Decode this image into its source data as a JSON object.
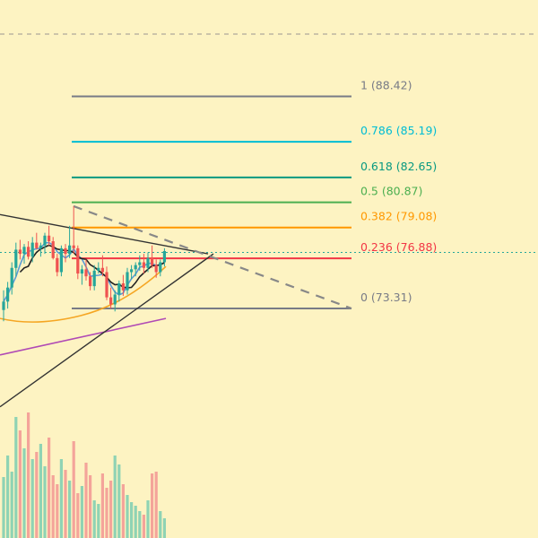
{
  "chart_data": {
    "type": "candlestick",
    "title": "",
    "xlabel": "",
    "ylabel": "",
    "ylim": [
      62.0,
      92.6
    ],
    "colors": {
      "background": "#fdf3c2",
      "up": "#26a69a",
      "down": "#ef5350",
      "volume_up": "#8fd3b4",
      "volume_down": "#f4a49a",
      "ma_fast": "#5b9bd5",
      "ma_mid": "#222222",
      "ma_slow": "#f5a623",
      "ma_long": "#b04ab5",
      "trendline": "#333333",
      "projection": "#888888",
      "current_price_line": "#26a69a"
    },
    "fibonacci": {
      "levels": [
        {
          "ratio": "1",
          "price": 88.42,
          "label": "1 (88.42)",
          "color": "#787b86"
        },
        {
          "ratio": "0.786",
          "price": 85.19,
          "label": "0.786 (85.19)",
          "color": "#00bcd4"
        },
        {
          "ratio": "0.618",
          "price": 82.65,
          "label": "0.618 (82.65)",
          "color": "#089981"
        },
        {
          "ratio": "0.5",
          "price": 80.87,
          "label": "0.5 (80.87)",
          "color": "#4caf50"
        },
        {
          "ratio": "0.382",
          "price": 79.08,
          "label": "0.382 (79.08)",
          "color": "#ff9800"
        },
        {
          "ratio": "0.236",
          "price": 76.88,
          "label": "0.236 (76.88)",
          "color": "#f23645"
        },
        {
          "ratio": "0",
          "price": 73.31,
          "label": "0 (73.31)",
          "color": "#787b86"
        }
      ]
    },
    "current_price": 77.3,
    "candles": [
      [
        73.2,
        74.6,
        72.4,
        73.8
      ],
      [
        73.8,
        75.2,
        73.3,
        74.8
      ],
      [
        74.8,
        76.6,
        74.3,
        76.2
      ],
      [
        76.2,
        78.0,
        75.6,
        77.5
      ],
      [
        77.5,
        78.2,
        76.8,
        77.2
      ],
      [
        77.2,
        77.9,
        76.5,
        77.7
      ],
      [
        77.7,
        78.1,
        76.8,
        77.0
      ],
      [
        77.0,
        78.4,
        76.6,
        78.0
      ],
      [
        78.0,
        78.7,
        77.5,
        77.6
      ],
      [
        77.6,
        78.0,
        77.0,
        77.8
      ],
      [
        77.8,
        78.7,
        77.2,
        78.5
      ],
      [
        78.5,
        79.2,
        77.8,
        78.1
      ],
      [
        78.1,
        78.4,
        76.8,
        76.9
      ],
      [
        76.9,
        77.2,
        75.6,
        75.9
      ],
      [
        75.9,
        77.8,
        75.6,
        77.6
      ],
      [
        77.6,
        77.9,
        76.6,
        77.2
      ],
      [
        77.2,
        79.2,
        76.9,
        77.8
      ],
      [
        77.8,
        80.6,
        77.2,
        77.6
      ],
      [
        77.6,
        77.8,
        75.4,
        75.8
      ],
      [
        75.8,
        76.4,
        75.0,
        76.1
      ],
      [
        76.1,
        76.8,
        75.3,
        75.6
      ],
      [
        75.6,
        75.9,
        74.6,
        74.9
      ],
      [
        74.9,
        76.4,
        74.6,
        76.0
      ],
      [
        76.0,
        76.6,
        75.8,
        76.2
      ],
      [
        76.2,
        77.1,
        75.6,
        75.9
      ],
      [
        75.9,
        76.3,
        73.9,
        74.1
      ],
      [
        74.1,
        74.8,
        73.3,
        73.6
      ],
      [
        73.6,
        74.6,
        73.1,
        74.3
      ],
      [
        74.3,
        75.3,
        73.8,
        75.1
      ],
      [
        75.1,
        75.7,
        74.2,
        74.6
      ],
      [
        74.6,
        76.2,
        74.3,
        75.9
      ],
      [
        75.9,
        76.4,
        75.4,
        76.1
      ],
      [
        76.1,
        76.6,
        75.6,
        76.4
      ],
      [
        76.4,
        77.1,
        76.0,
        76.6
      ],
      [
        76.6,
        77.2,
        75.8,
        76.2
      ],
      [
        76.2,
        77.3,
        75.9,
        76.9
      ],
      [
        76.9,
        77.8,
        76.2,
        76.4
      ],
      [
        76.4,
        76.8,
        75.5,
        75.9
      ],
      [
        75.9,
        76.8,
        75.6,
        76.6
      ],
      [
        76.6,
        77.6,
        76.3,
        77.4
      ]
    ],
    "volume": [
      68,
      92,
      74,
      135,
      120,
      100,
      140,
      88,
      96,
      105,
      80,
      112,
      70,
      60,
      88,
      76,
      64,
      108,
      50,
      58,
      84,
      70,
      42,
      38,
      72,
      56,
      64,
      92,
      82,
      60,
      48,
      40,
      36,
      30,
      26,
      42,
      72,
      74,
      30,
      22
    ]
  }
}
